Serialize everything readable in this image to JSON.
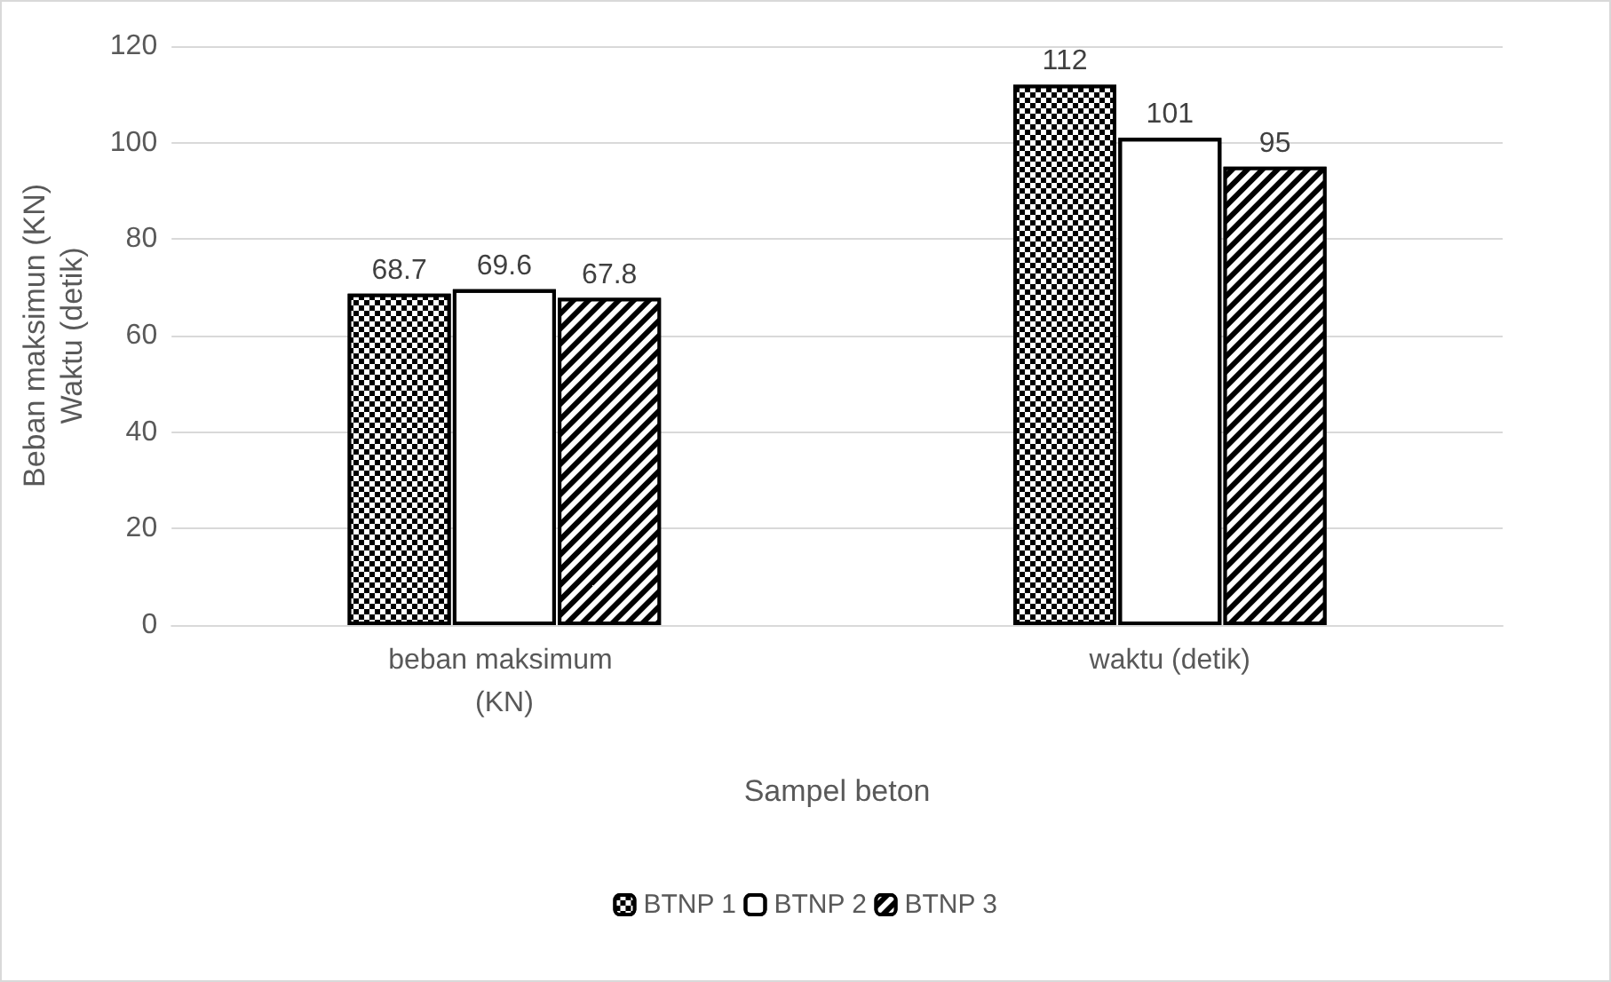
{
  "chart_data": {
    "type": "bar",
    "xlabel": "Sampel beton",
    "ylabel": "Beban maksimun (KN)\nWaktu (detik)",
    "categories": [
      "beban maksimum (KN)",
      "waktu (detik)"
    ],
    "series": [
      {
        "name": "BTNP 1",
        "color": "#000000",
        "values": [
          68.7,
          112
        ]
      },
      {
        "name": "BTNP 2",
        "color": "#ffffff",
        "values": [
          69.6,
          101
        ]
      },
      {
        "name": "BTNP 3",
        "color": "#000000",
        "values": [
          67.8,
          95
        ]
      }
    ],
    "ylim": [
      0,
      120
    ],
    "yticks": [
      0,
      20,
      40,
      60,
      80,
      100,
      120
    ],
    "grid": "y",
    "legend": "bottom",
    "data_labels": true
  }
}
